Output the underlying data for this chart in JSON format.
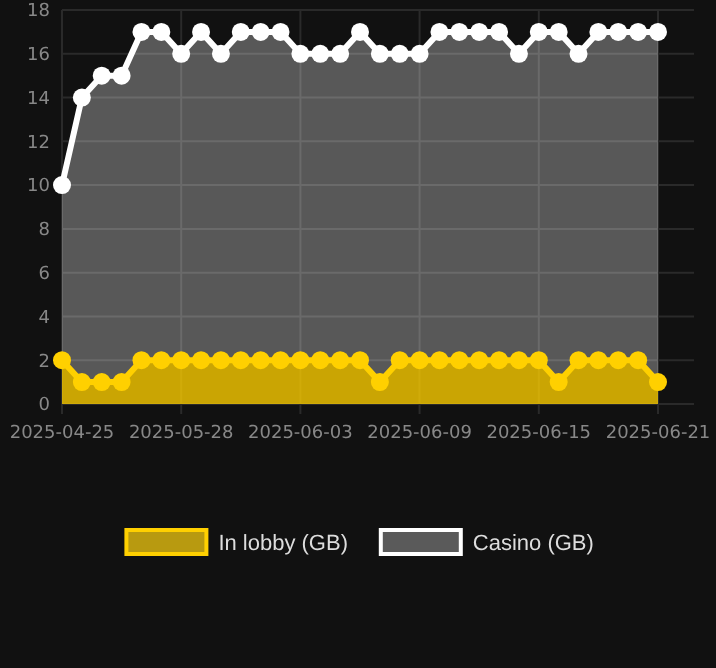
{
  "chart_data": {
    "type": "area",
    "categories": [
      "2025-04-25",
      null,
      null,
      null,
      null,
      null,
      "2025-05-28",
      null,
      null,
      null,
      null,
      null,
      "2025-06-03",
      null,
      null,
      null,
      null,
      null,
      "2025-06-09",
      null,
      null,
      null,
      null,
      null,
      "2025-06-15",
      null,
      null,
      null,
      null,
      null,
      "2025-06-21"
    ],
    "series": [
      {
        "name": "In lobby (GB)",
        "color": "#ffd000",
        "values": [
          2,
          1,
          1,
          1,
          2,
          2,
          2,
          2,
          2,
          2,
          2,
          2,
          2,
          2,
          2,
          2,
          1,
          2,
          2,
          2,
          2,
          2,
          2,
          2,
          2,
          1,
          2,
          2,
          2,
          2,
          1
        ]
      },
      {
        "name": "Casino (GB)",
        "color": "#ffffff",
        "values": [
          10,
          14,
          15,
          15,
          17,
          17,
          16,
          17,
          16,
          17,
          17,
          17,
          16,
          16,
          16,
          17,
          16,
          16,
          16,
          17,
          17,
          17,
          17,
          16,
          17,
          17,
          16,
          17,
          17,
          17,
          17
        ]
      }
    ],
    "ylim": [
      0,
      18
    ],
    "yticks": [
      0,
      2,
      4,
      6,
      8,
      10,
      12,
      14,
      16,
      18
    ],
    "grid": true,
    "legend": "bottom",
    "marker": "circle"
  }
}
